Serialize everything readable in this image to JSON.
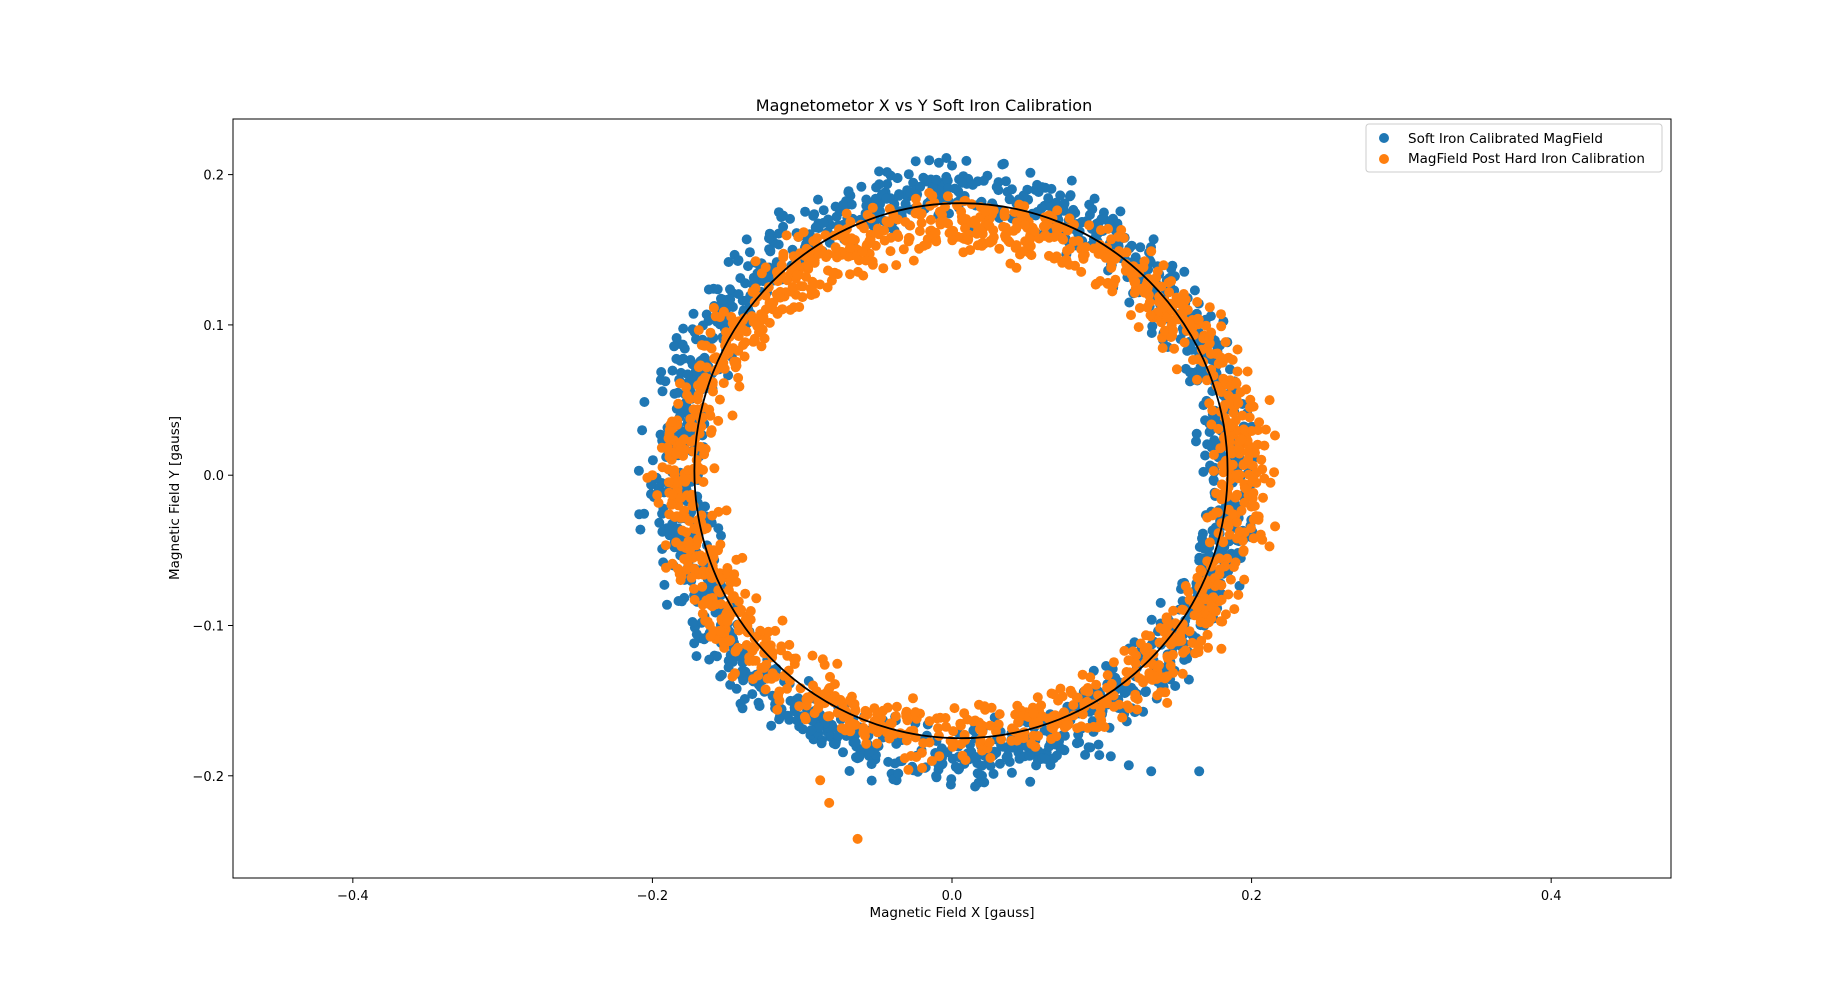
{
  "chart_data": {
    "type": "scatter",
    "title": "Magnetometor X vs Y Soft Iron Calibration",
    "xlabel": "Magnetic Field X [gauss]",
    "ylabel": "Magnetic Field Y [gauss]",
    "xlim": [
      -0.48,
      0.48
    ],
    "ylim": [
      -0.268,
      0.237
    ],
    "xticks": [
      -0.4,
      -0.2,
      0.0,
      0.2,
      0.4
    ],
    "xtick_labels": [
      "−0.4",
      "−0.2",
      "0.0",
      "0.2",
      "0.4"
    ],
    "yticks": [
      -0.2,
      -0.1,
      0.0,
      0.1,
      0.2
    ],
    "ytick_labels": [
      "−0.2",
      "−0.1",
      "0.0",
      "0.1",
      "0.2"
    ],
    "grid": false,
    "legend_position": "top-right",
    "series": [
      {
        "name": "Soft Iron Calibrated MagField",
        "color": "#1f77b4",
        "marker": "circle",
        "ring": {
          "center": [
            0.0,
            0.0
          ],
          "rx": 0.185,
          "ry": 0.188,
          "thickness": 0.02,
          "count": 1400
        },
        "outliers": [
          [
            0.0,
            0.206
          ],
          [
            0.08,
            0.196
          ],
          [
            0.106,
            -0.187
          ],
          [
            0.118,
            -0.193
          ],
          [
            0.133,
            -0.197
          ],
          [
            0.165,
            -0.197
          ],
          [
            0.02,
            -0.2
          ],
          [
            0.04,
            -0.198
          ]
        ]
      },
      {
        "name": "MagField Post Hard Iron Calibration",
        "color": "#ff7f0e",
        "marker": "circle",
        "ring": {
          "center": [
            0.008,
            -0.003
          ],
          "rx": 0.186,
          "ry": 0.17,
          "thickness": 0.02,
          "count": 1400
        },
        "outliers": [
          [
            -0.2,
            0.0
          ],
          [
            0.215,
            0.002
          ],
          [
            -0.088,
            -0.203
          ],
          [
            -0.082,
            -0.218
          ],
          [
            -0.063,
            -0.242
          ],
          [
            0.043,
            0.138
          ],
          [
            -0.14,
            -0.055
          ],
          [
            0.212,
            0.05
          ]
        ]
      }
    ],
    "fit_circle": {
      "center": [
        0.006,
        0.003
      ],
      "radius": 0.178,
      "ry": 0.178,
      "color": "#000000"
    }
  }
}
